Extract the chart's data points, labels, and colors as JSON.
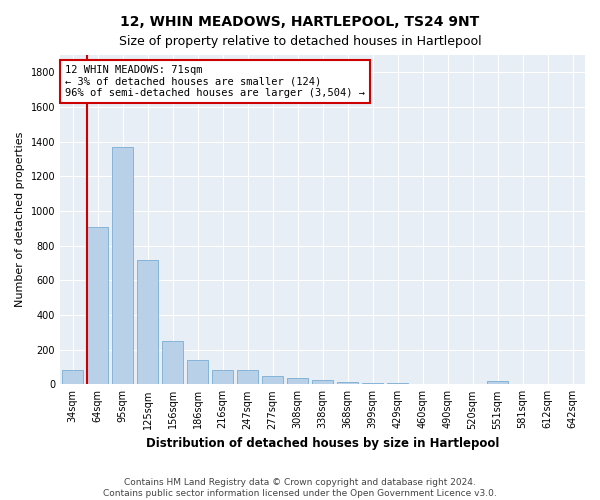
{
  "title": "12, WHIN MEADOWS, HARTLEPOOL, TS24 9NT",
  "subtitle": "Size of property relative to detached houses in Hartlepool",
  "xlabel": "Distribution of detached houses by size in Hartlepool",
  "ylabel": "Number of detached properties",
  "categories": [
    "34sqm",
    "64sqm",
    "95sqm",
    "125sqm",
    "156sqm",
    "186sqm",
    "216sqm",
    "247sqm",
    "277sqm",
    "308sqm",
    "338sqm",
    "368sqm",
    "399sqm",
    "429sqm",
    "460sqm",
    "490sqm",
    "520sqm",
    "551sqm",
    "581sqm",
    "612sqm",
    "642sqm"
  ],
  "values": [
    80,
    910,
    1370,
    715,
    248,
    140,
    85,
    85,
    50,
    35,
    25,
    15,
    10,
    10,
    0,
    0,
    0,
    20,
    0,
    0,
    0
  ],
  "bar_color": "#b8d0e8",
  "bar_edge_color": "#7aadd4",
  "highlight_bar_index": 1,
  "highlight_edge_color": "#cc0000",
  "annotation_text": "12 WHIN MEADOWS: 71sqm\n← 3% of detached houses are smaller (124)\n96% of semi-detached houses are larger (3,504) →",
  "annotation_box_color": "#ffffff",
  "annotation_box_edge_color": "#cc0000",
  "vline_x": 1,
  "ylim": [
    0,
    1900
  ],
  "yticks": [
    0,
    200,
    400,
    600,
    800,
    1000,
    1200,
    1400,
    1600,
    1800
  ],
  "background_color": "#e8eef5",
  "grid_color": "#ffffff",
  "footer_line1": "Contains HM Land Registry data © Crown copyright and database right 2024.",
  "footer_line2": "Contains public sector information licensed under the Open Government Licence v3.0.",
  "title_fontsize": 10,
  "subtitle_fontsize": 9,
  "xlabel_fontsize": 8.5,
  "ylabel_fontsize": 8,
  "tick_fontsize": 7,
  "footer_fontsize": 6.5,
  "annotation_fontsize": 7.5
}
